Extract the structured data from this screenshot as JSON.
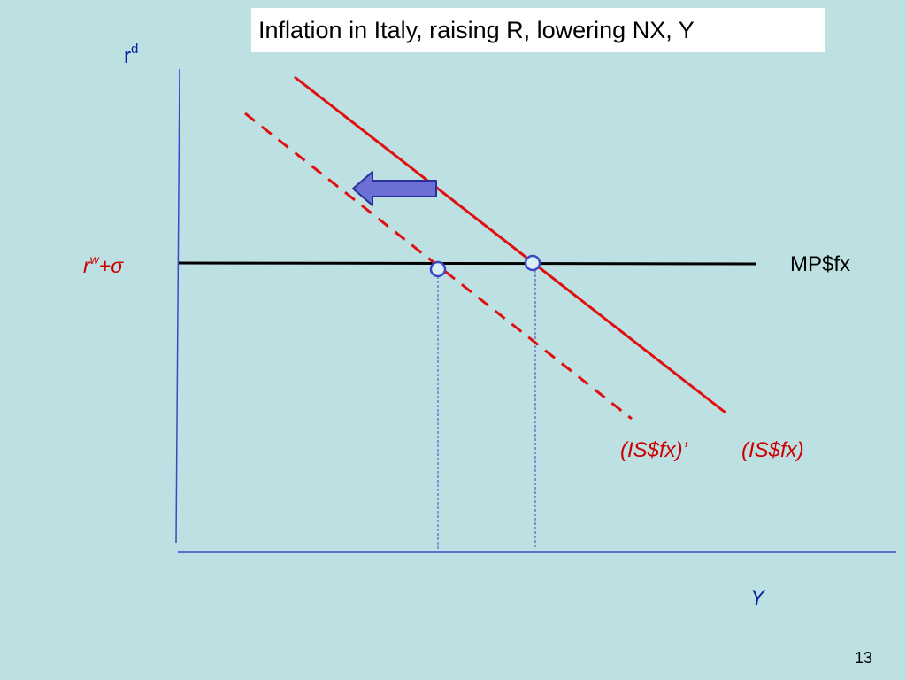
{
  "title": "Inflation in Italy, raising R, lowering NX, Y",
  "axes": {
    "y_label_base": "r",
    "y_label_sup": "d",
    "x_label": "Y"
  },
  "rate_label": {
    "base": "r",
    "sup": "w",
    "suffix": "+σ"
  },
  "curves": {
    "mp": "MP$fx",
    "is_shifted": "(IS$fx)’",
    "is_original": "(IS$fx)"
  },
  "page_number": "13",
  "colors": {
    "background": "#bde0e3",
    "axis": "#3b48c4",
    "curve_red": "#e01010",
    "label_red": "#cc0000",
    "label_blue": "#0b1fa0",
    "arrow_fill": "#6b6fd6",
    "arrow_stroke": "#2a2f9a",
    "marker_stroke": "#3b48c4"
  }
}
